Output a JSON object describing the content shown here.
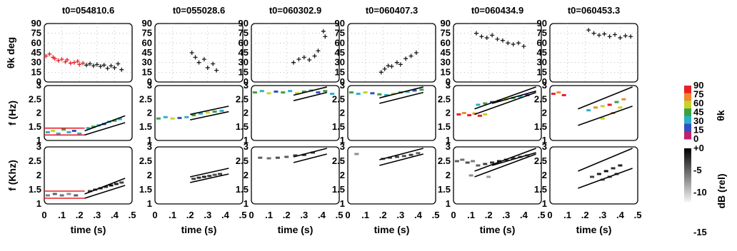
{
  "figure": {
    "panel_titles": [
      "t0=054810.6",
      "t0=055028.6",
      "t0=060302.9",
      "t0=060407.3",
      "t0=060434.9",
      "t0=060453.3"
    ],
    "row_ylabels": [
      "θk deg",
      "f (Hz)",
      "f (Khz)"
    ],
    "xlabel": "time (s)",
    "colorbar_theta_label": "θk",
    "colorbar_db_label": "dB (rel)"
  },
  "chart_data": {
    "type": "scatter",
    "x_ticks": [
      "0",
      ".1",
      ".2",
      ".3",
      ".4",
      ".5"
    ],
    "xlim": [
      0,
      0.5
    ],
    "rows": [
      {
        "name": "theta",
        "ylim": [
          0,
          90
        ],
        "ticks": [
          0,
          15,
          30,
          45,
          60,
          75,
          90
        ],
        "tick_labels": [
          "0",
          "15",
          "30",
          "45",
          "60",
          "75",
          "90"
        ],
        "grid": true
      },
      {
        "name": "f_theta",
        "ylim": [
          1,
          3
        ],
        "ticks": [
          1,
          1.5,
          2,
          2.5,
          3
        ],
        "tick_labels": [
          "1",
          "1.5",
          "2",
          "2.5",
          "3"
        ],
        "grid": false
      },
      {
        "name": "f_power",
        "ylim": [
          1,
          3
        ],
        "ticks": [
          1,
          1.5,
          2,
          2.5,
          3
        ],
        "tick_labels": [
          "1",
          "1.5",
          "2",
          "2.5",
          "3"
        ],
        "grid": false
      }
    ],
    "colorbar_theta": {
      "ticks": [
        "90",
        "75",
        "60",
        "45",
        "30",
        "15",
        "0"
      ],
      "colors": [
        "#e8202a",
        "#f08a2a",
        "#c8d22a",
        "#3aa048",
        "#2ab0c8",
        "#3050c0",
        "#c02070"
      ]
    },
    "colorbar_db": {
      "ticks": [
        "+0",
        "-5",
        "-10",
        "-15"
      ],
      "range": [
        -15,
        0
      ]
    },
    "panels": [
      {
        "theta_points": [
          [
            0.01,
            40
          ],
          [
            0.03,
            43
          ],
          [
            0.05,
            38
          ],
          [
            0.06,
            36
          ],
          [
            0.08,
            33
          ],
          [
            0.1,
            35
          ],
          [
            0.12,
            31
          ],
          [
            0.13,
            34
          ],
          [
            0.15,
            29
          ],
          [
            0.17,
            30
          ],
          [
            0.19,
            32
          ],
          [
            0.2,
            27
          ],
          [
            0.22,
            29
          ],
          [
            0.24,
            26
          ],
          [
            0.26,
            28
          ],
          [
            0.28,
            25
          ],
          [
            0.3,
            27
          ],
          [
            0.32,
            24
          ],
          [
            0.34,
            26
          ],
          [
            0.36,
            21
          ],
          [
            0.38,
            25
          ],
          [
            0.4,
            22
          ],
          [
            0.42,
            28
          ],
          [
            0.44,
            19
          ]
        ],
        "theta_red_until": 0.22,
        "f_segments": [
          {
            "x": [
              0.0,
              0.23
            ],
            "y": [
              1.45,
              1.45
            ],
            "color": "#e8202a"
          },
          {
            "x": [
              0.0,
              0.23
            ],
            "y": [
              1.2,
              1.2
            ],
            "color": "#e8202a"
          },
          {
            "x": [
              0.23,
              0.46
            ],
            "y": [
              1.35,
              1.9
            ],
            "color": "#000000"
          },
          {
            "x": [
              0.23,
              0.46
            ],
            "y": [
              1.2,
              1.65
            ],
            "color": "#000000"
          }
        ],
        "f_theta_points": [
          [
            0.02,
            1.3,
            30
          ],
          [
            0.05,
            1.35,
            60
          ],
          [
            0.08,
            1.25,
            30
          ],
          [
            0.11,
            1.4,
            45
          ],
          [
            0.14,
            1.3,
            30
          ],
          [
            0.17,
            1.35,
            15
          ],
          [
            0.2,
            1.25,
            30
          ],
          [
            0.25,
            1.45,
            30
          ],
          [
            0.28,
            1.5,
            45
          ],
          [
            0.31,
            1.55,
            30
          ],
          [
            0.34,
            1.6,
            15
          ],
          [
            0.37,
            1.68,
            30
          ],
          [
            0.4,
            1.72,
            45
          ],
          [
            0.43,
            1.78,
            30
          ]
        ],
        "f_power_points": [
          [
            0.02,
            1.3,
            -8
          ],
          [
            0.06,
            1.35,
            -6
          ],
          [
            0.1,
            1.3,
            -7
          ],
          [
            0.14,
            1.35,
            -9
          ],
          [
            0.18,
            1.3,
            -6
          ],
          [
            0.26,
            1.45,
            -4
          ],
          [
            0.29,
            1.5,
            -3
          ],
          [
            0.32,
            1.55,
            -2
          ],
          [
            0.35,
            1.6,
            -3
          ],
          [
            0.38,
            1.65,
            -1
          ],
          [
            0.41,
            1.7,
            -2
          ],
          [
            0.44,
            1.75,
            -4
          ]
        ]
      },
      {
        "theta_points": [
          [
            0.21,
            45
          ],
          [
            0.23,
            38
          ],
          [
            0.25,
            30
          ],
          [
            0.28,
            35
          ],
          [
            0.3,
            22
          ],
          [
            0.33,
            28
          ],
          [
            0.35,
            18
          ]
        ],
        "theta_red_until": 0,
        "f_segments": [
          {
            "x": [
              0.2,
              0.42
            ],
            "y": [
              1.95,
              2.25
            ],
            "color": "#000000"
          },
          {
            "x": [
              0.2,
              0.42
            ],
            "y": [
              1.75,
              2.05
            ],
            "color": "#000000"
          }
        ],
        "f_theta_points": [
          [
            0.02,
            1.8,
            45
          ],
          [
            0.06,
            1.85,
            30
          ],
          [
            0.1,
            1.8,
            60
          ],
          [
            0.14,
            1.82,
            15
          ],
          [
            0.18,
            1.85,
            30
          ],
          [
            0.22,
            1.92,
            45
          ],
          [
            0.26,
            1.98,
            30
          ],
          [
            0.3,
            2.02,
            60
          ],
          [
            0.34,
            2.05,
            45
          ],
          [
            0.38,
            2.08,
            30
          ]
        ],
        "f_power_points": [
          [
            0.22,
            1.88,
            -4
          ],
          [
            0.25,
            1.92,
            -3
          ],
          [
            0.28,
            1.95,
            -2
          ],
          [
            0.31,
            1.98,
            -3
          ],
          [
            0.34,
            2.02,
            -5
          ],
          [
            0.37,
            2.05,
            -4
          ]
        ]
      },
      {
        "theta_points": [
          [
            0.24,
            30
          ],
          [
            0.27,
            35
          ],
          [
            0.3,
            38
          ],
          [
            0.33,
            34
          ],
          [
            0.36,
            40
          ],
          [
            0.38,
            48
          ],
          [
            0.41,
            78
          ],
          [
            0.42,
            70
          ]
        ],
        "theta_red_until": 0,
        "f_segments": [
          {
            "x": [
              0.24,
              0.43
            ],
            "y": [
              2.65,
              2.95
            ],
            "color": "#000000"
          },
          {
            "x": [
              0.24,
              0.43
            ],
            "y": [
              2.45,
              2.75
            ],
            "color": "#000000"
          }
        ],
        "f_theta_points": [
          [
            0.02,
            2.75,
            45
          ],
          [
            0.06,
            2.8,
            30
          ],
          [
            0.1,
            2.72,
            60
          ],
          [
            0.14,
            2.78,
            15
          ],
          [
            0.18,
            2.75,
            45
          ],
          [
            0.22,
            2.8,
            30
          ],
          [
            0.26,
            2.72,
            60
          ],
          [
            0.3,
            2.78,
            45
          ],
          [
            0.34,
            2.82,
            30
          ],
          [
            0.38,
            2.75,
            15
          ],
          [
            0.42,
            2.8,
            45
          ],
          [
            0.46,
            2.7,
            30
          ]
        ],
        "f_power_points": [
          [
            0.05,
            2.62,
            -6
          ],
          [
            0.1,
            2.6,
            -7
          ],
          [
            0.15,
            2.62,
            -5
          ],
          [
            0.2,
            2.65,
            -6
          ],
          [
            0.25,
            2.7,
            -4
          ],
          [
            0.3,
            2.72,
            -3
          ],
          [
            0.35,
            2.8,
            -4
          ]
        ]
      },
      {
        "theta_points": [
          [
            0.19,
            15
          ],
          [
            0.21,
            20
          ],
          [
            0.23,
            25
          ],
          [
            0.25,
            24
          ],
          [
            0.28,
            30
          ],
          [
            0.3,
            27
          ],
          [
            0.33,
            36
          ],
          [
            0.36,
            40
          ],
          [
            0.39,
            45
          ]
        ],
        "theta_red_until": 0,
        "f_segments": [
          {
            "x": [
              0.18,
              0.43
            ],
            "y": [
              2.55,
              2.95
            ],
            "color": "#000000"
          },
          {
            "x": [
              0.18,
              0.43
            ],
            "y": [
              2.35,
              2.75
            ],
            "color": "#000000"
          }
        ],
        "f_theta_points": [
          [
            0.02,
            2.75,
            45
          ],
          [
            0.06,
            2.7,
            30
          ],
          [
            0.1,
            2.75,
            60
          ],
          [
            0.14,
            2.72,
            15
          ],
          [
            0.18,
            2.68,
            45
          ],
          [
            0.22,
            2.65,
            30
          ],
          [
            0.26,
            2.7,
            60
          ],
          [
            0.3,
            2.75,
            45
          ],
          [
            0.34,
            2.78,
            30
          ],
          [
            0.38,
            2.82,
            15
          ],
          [
            0.42,
            2.85,
            45
          ]
        ],
        "f_power_points": [
          [
            0.05,
            2.75,
            -9
          ],
          [
            0.2,
            2.58,
            -6
          ],
          [
            0.24,
            2.62,
            -5
          ],
          [
            0.28,
            2.65,
            -4
          ],
          [
            0.32,
            2.68,
            -5
          ],
          [
            0.36,
            2.72,
            -4
          ],
          [
            0.4,
            2.78,
            -6
          ]
        ]
      },
      {
        "theta_points": [
          [
            0.13,
            75
          ],
          [
            0.16,
            70
          ],
          [
            0.19,
            68
          ],
          [
            0.22,
            72
          ],
          [
            0.25,
            66
          ],
          [
            0.28,
            64
          ],
          [
            0.31,
            60
          ],
          [
            0.34,
            58
          ],
          [
            0.37,
            60
          ],
          [
            0.4,
            55
          ]
        ],
        "theta_red_until": 0,
        "f_segments": [
          {
            "x": [
              0.12,
              0.47
            ],
            "y": [
              2.15,
              2.95
            ],
            "color": "#000000"
          },
          {
            "x": [
              0.12,
              0.47
            ],
            "y": [
              1.95,
              2.75
            ],
            "color": "#000000"
          },
          {
            "x": [
              0.22,
              0.47
            ],
            "y": [
              2.35,
              2.8
            ],
            "color": "#000000"
          }
        ],
        "f_theta_points": [
          [
            0.03,
            1.95,
            90
          ],
          [
            0.06,
            2.0,
            75
          ],
          [
            0.09,
            1.92,
            90
          ],
          [
            0.12,
            1.98,
            75
          ],
          [
            0.15,
            1.9,
            90
          ],
          [
            0.18,
            1.95,
            60
          ],
          [
            0.14,
            2.3,
            30
          ],
          [
            0.18,
            2.35,
            45
          ],
          [
            0.22,
            2.4,
            15
          ],
          [
            0.26,
            2.45,
            30
          ],
          [
            0.3,
            2.5,
            60
          ],
          [
            0.34,
            2.55,
            45
          ],
          [
            0.38,
            2.6,
            30
          ],
          [
            0.42,
            2.65,
            15
          ]
        ],
        "f_power_points": [
          [
            0.02,
            2.5,
            -6
          ],
          [
            0.05,
            2.55,
            -7
          ],
          [
            0.08,
            2.45,
            -5
          ],
          [
            0.11,
            2.5,
            -8
          ],
          [
            0.14,
            2.35,
            -6
          ],
          [
            0.18,
            2.4,
            -4
          ],
          [
            0.22,
            2.45,
            -3
          ],
          [
            0.26,
            2.5,
            -2
          ],
          [
            0.3,
            2.55,
            -3
          ],
          [
            0.34,
            2.6,
            -4
          ],
          [
            0.38,
            2.65,
            -5
          ],
          [
            0.42,
            2.7,
            -6
          ],
          [
            0.1,
            2.0,
            -9
          ],
          [
            0.2,
            1.95,
            -10
          ]
        ]
      },
      {
        "theta_points": [
          [
            0.22,
            80
          ],
          [
            0.25,
            75
          ],
          [
            0.28,
            72
          ],
          [
            0.31,
            74
          ],
          [
            0.34,
            70
          ],
          [
            0.37,
            73
          ],
          [
            0.4,
            68
          ],
          [
            0.43,
            71
          ],
          [
            0.46,
            70
          ]
        ],
        "theta_red_until": 0,
        "f_segments": [
          {
            "x": [
              0.16,
              0.47
            ],
            "y": [
              2.15,
              2.95
            ],
            "color": "#000000"
          },
          {
            "x": [
              0.16,
              0.47
            ],
            "y": [
              1.55,
              2.25
            ],
            "color": "#000000"
          }
        ],
        "f_theta_points": [
          [
            0.02,
            2.7,
            90
          ],
          [
            0.05,
            2.75,
            75
          ],
          [
            0.08,
            2.65,
            90
          ],
          [
            0.22,
            2.1,
            30
          ],
          [
            0.26,
            2.2,
            75
          ],
          [
            0.3,
            2.25,
            60
          ],
          [
            0.34,
            2.3,
            90
          ],
          [
            0.38,
            2.4,
            45
          ],
          [
            0.42,
            2.5,
            75
          ],
          [
            0.3,
            1.8,
            60
          ],
          [
            0.36,
            2.0,
            75
          ],
          [
            0.4,
            2.2,
            60
          ]
        ],
        "f_power_points": [
          [
            0.24,
            1.95,
            -4
          ],
          [
            0.28,
            2.05,
            -2
          ],
          [
            0.32,
            2.15,
            -1
          ],
          [
            0.36,
            2.25,
            -3
          ],
          [
            0.4,
            2.35,
            -2
          ],
          [
            0.34,
            1.95,
            -5
          ],
          [
            0.3,
            1.85,
            -6
          ],
          [
            0.38,
            2.05,
            -4
          ]
        ]
      }
    ]
  }
}
